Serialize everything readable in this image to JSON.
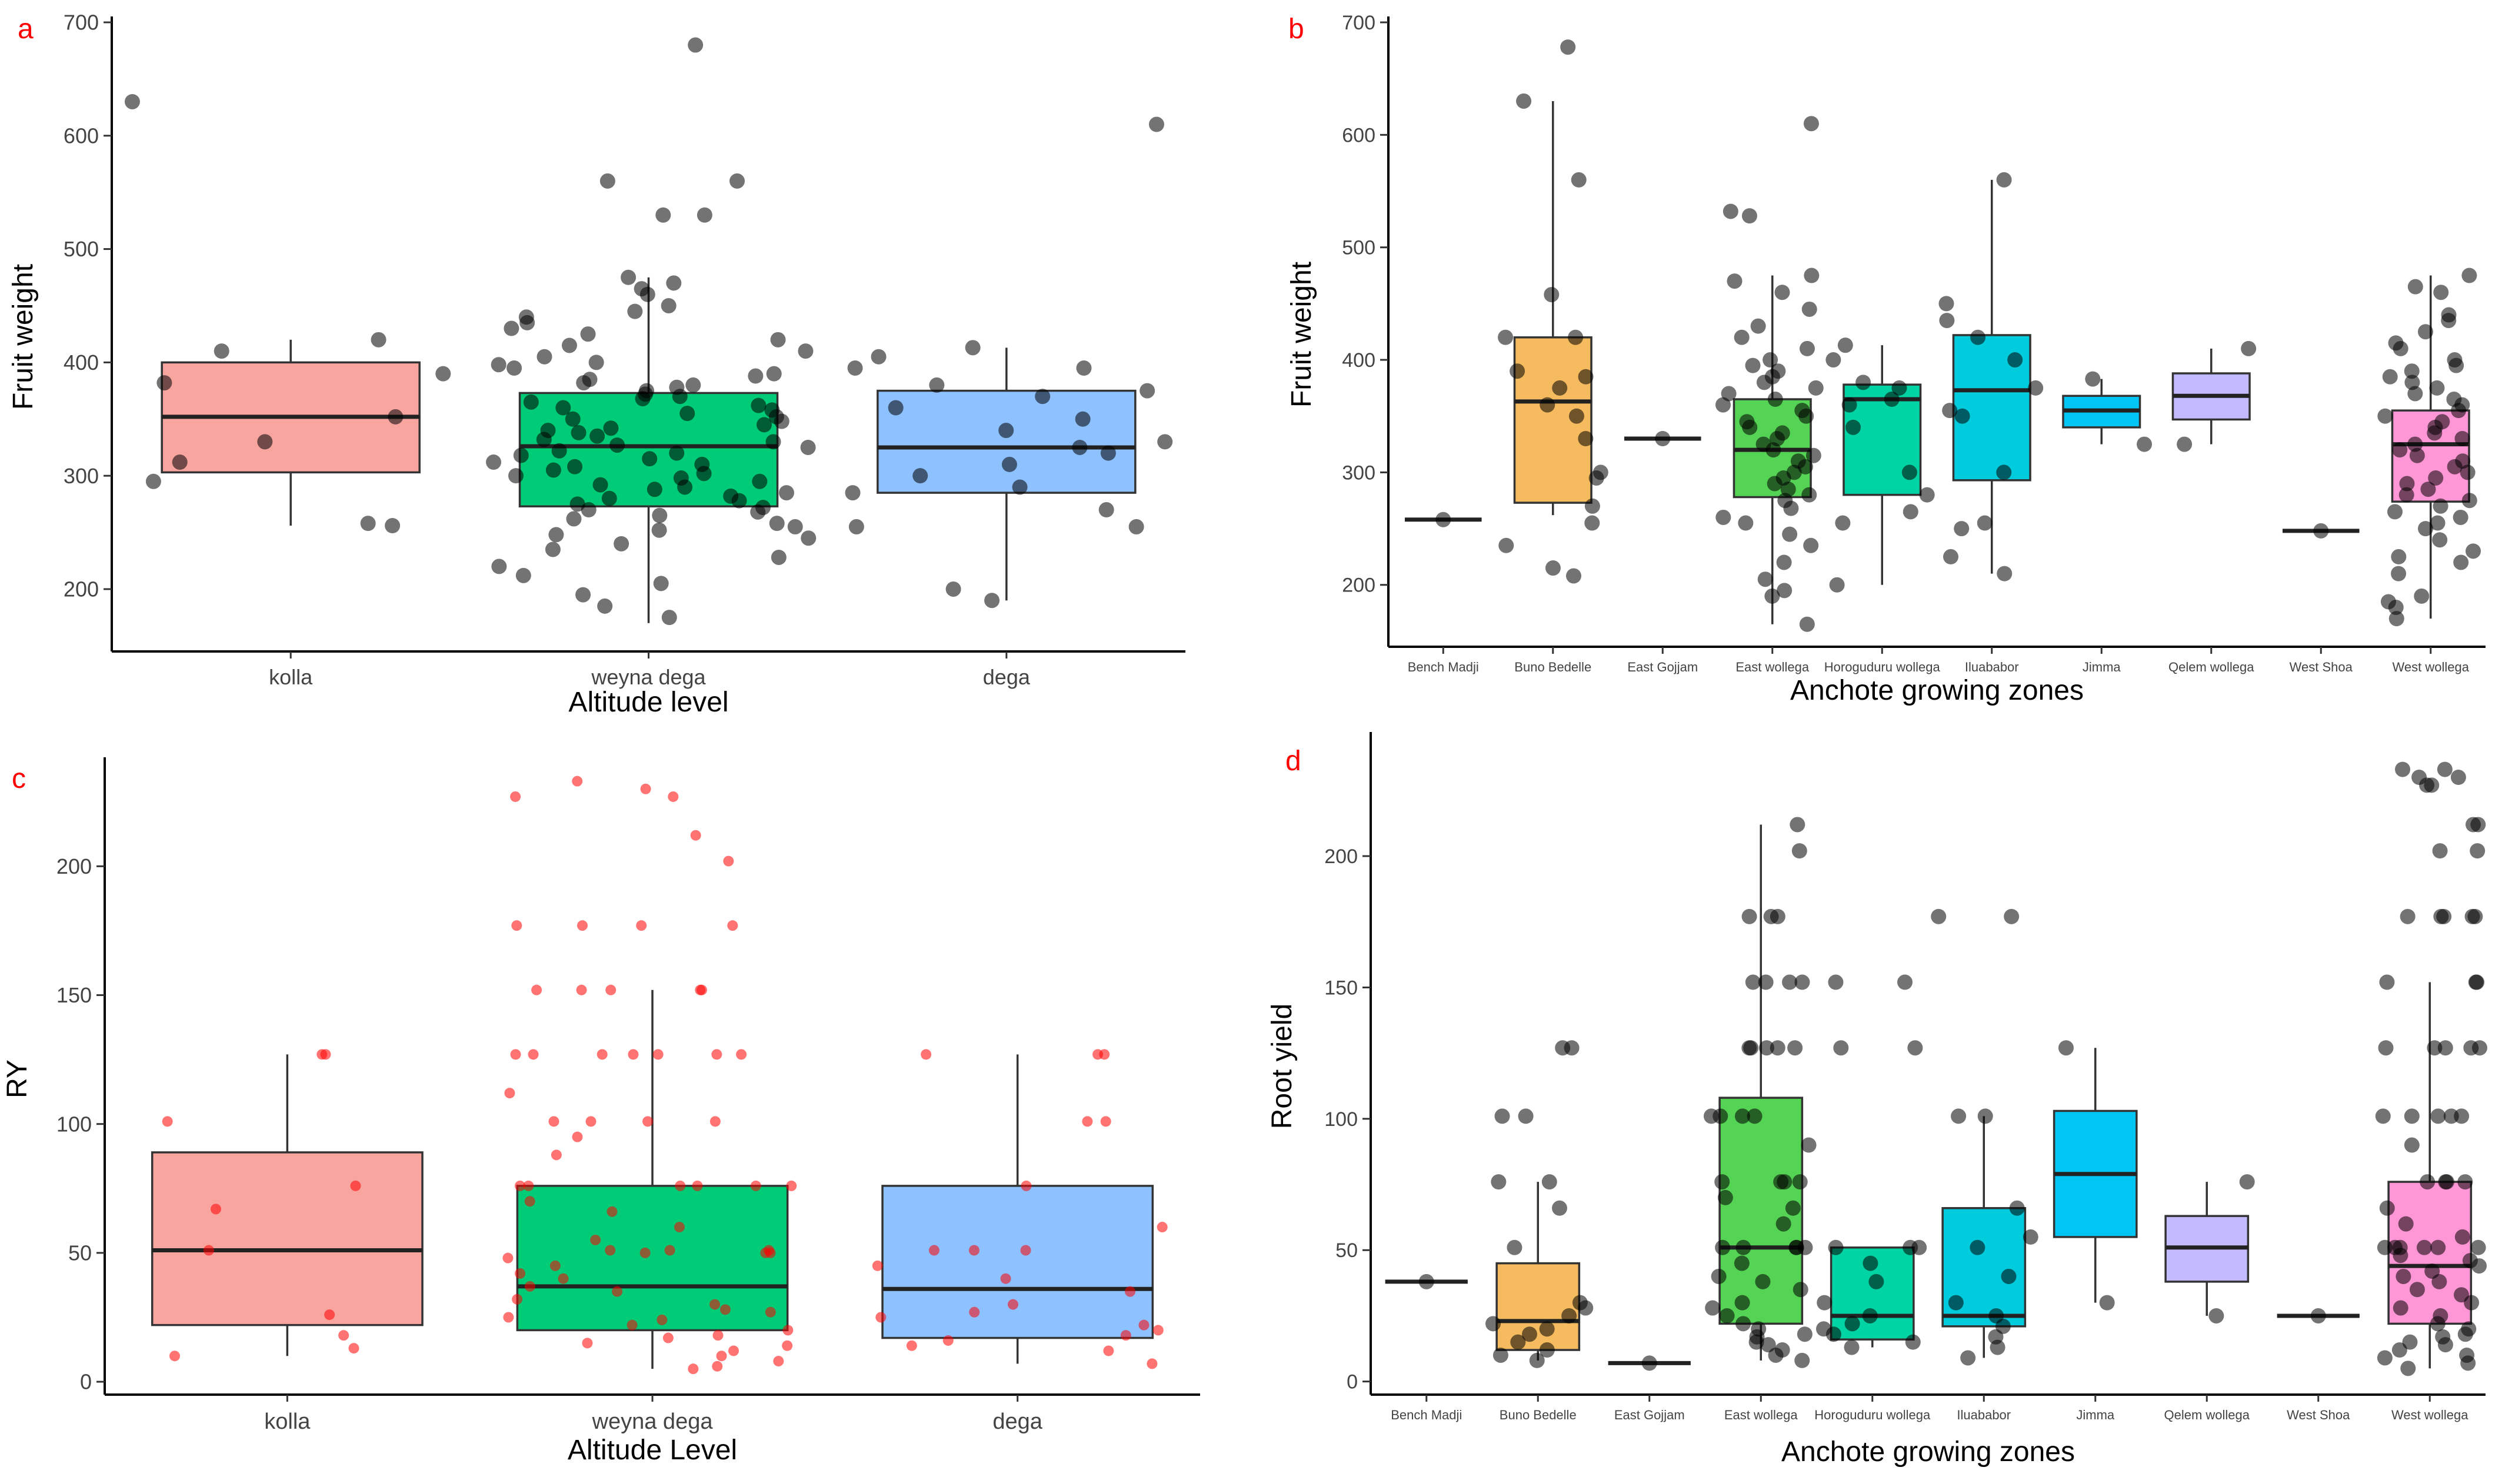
{
  "chart_data": [
    {
      "panel": "a",
      "type": "box",
      "xlabel": "Altitude level",
      "ylabel": "Fruit weight",
      "ylim": [
        145,
        700
      ],
      "yticks": [
        200,
        300,
        400,
        500,
        600,
        700
      ],
      "categories": [
        "kolla",
        "weyna dega",
        "dega"
      ],
      "colors": [
        "#f8a5a0",
        "#00cc77",
        "#8ec1ff"
      ],
      "point_color": "#000000",
      "boxes": [
        {
          "q1": 303,
          "median": 352,
          "q3": 400,
          "whisker_low": 256,
          "whisker_high": 420
        },
        {
          "q1": 273,
          "median": 326,
          "q3": 373,
          "whisker_low": 170,
          "whisker_high": 475
        },
        {
          "q1": 285,
          "median": 325,
          "q3": 375,
          "whisker_low": 190,
          "whisker_high": 413
        }
      ],
      "outliers": [
        [
          630
        ],
        [
          680,
          560,
          560,
          530,
          530
        ],
        [
          610
        ]
      ],
      "points": [
        [
          258,
          295,
          330,
          352,
          312,
          256,
          382,
          390,
          410,
          420
        ],
        [
          175,
          185,
          195,
          205,
          212,
          220,
          228,
          235,
          240,
          245,
          248,
          252,
          255,
          258,
          262,
          265,
          268,
          270,
          272,
          275,
          278,
          280,
          282,
          285,
          288,
          290,
          292,
          295,
          298,
          300,
          302,
          305,
          308,
          310,
          312,
          315,
          318,
          320,
          322,
          325,
          327,
          330,
          332,
          335,
          338,
          340,
          342,
          345,
          348,
          350,
          352,
          355,
          358,
          360,
          362,
          365,
          368,
          370,
          372,
          375,
          378,
          380,
          382,
          385,
          388,
          390,
          395,
          398,
          400,
          405,
          410,
          415,
          420,
          425,
          430,
          435,
          440,
          445,
          450,
          460,
          465,
          470,
          475
        ],
        [
          190,
          200,
          255,
          255,
          270,
          285,
          290,
          300,
          310,
          320,
          325,
          330,
          340,
          350,
          360,
          370,
          375,
          380,
          395,
          395,
          405,
          413
        ]
      ]
    },
    {
      "panel": "b",
      "type": "box",
      "xlabel": "Anchote growing zones",
      "ylabel": "Fruit weight",
      "ylim": [
        145,
        700
      ],
      "yticks": [
        200,
        300,
        400,
        500,
        600,
        700
      ],
      "categories": [
        "Bench Madji",
        "Buno Bedelle",
        "East Gojjam",
        "East wollega",
        "Horoguduru wollega",
        "Iluababor",
        "Jimma",
        "Qelem wollega",
        "West Shoa",
        "West wollega"
      ],
      "colors": [
        "#f8a5a0",
        "#f5bb5e",
        "#c9d34e",
        "#55d355",
        "#00d4a4",
        "#00ccdd",
        "#00c5f5",
        "#c2bbff",
        "#f5a0f0",
        "#ff96d6"
      ],
      "point_color": "#000000",
      "boxes": [
        {
          "q1": 258,
          "median": 258,
          "q3": 258,
          "whisker_low": 258,
          "whisker_high": 258
        },
        {
          "q1": 273,
          "median": 363,
          "q3": 420,
          "whisker_low": 262,
          "whisker_high": 630
        },
        {
          "q1": 330,
          "median": 330,
          "q3": 330,
          "whisker_low": 330,
          "whisker_high": 330
        },
        {
          "q1": 278,
          "median": 320,
          "q3": 365,
          "whisker_low": 165,
          "whisker_high": 475
        },
        {
          "q1": 280,
          "median": 365,
          "q3": 378,
          "whisker_low": 200,
          "whisker_high": 413
        },
        {
          "q1": 293,
          "median": 373,
          "q3": 422,
          "whisker_low": 210,
          "whisker_high": 560
        },
        {
          "q1": 340,
          "median": 355,
          "q3": 368,
          "whisker_low": 325,
          "whisker_high": 383
        },
        {
          "q1": 347,
          "median": 368,
          "q3": 388,
          "whisker_low": 325,
          "whisker_high": 410
        },
        {
          "q1": 248,
          "median": 248,
          "q3": 248,
          "whisker_low": 248,
          "whisker_high": 248
        },
        {
          "q1": 274,
          "median": 325,
          "q3": 355,
          "whisker_low": 170,
          "whisker_high": 475
        }
      ],
      "outliers": [
        [],
        [
          678
        ],
        [],
        [
          610,
          532,
          528
        ],
        [],
        [],
        [],
        [],
        [],
        []
      ],
      "points": [
        [
          258
        ],
        [
          208,
          215,
          235,
          255,
          270,
          295,
          300,
          330,
          350,
          360,
          375,
          385,
          390,
          420,
          420,
          458,
          560,
          630
        ],
        [
          330
        ],
        [
          165,
          190,
          195,
          205,
          220,
          235,
          245,
          255,
          260,
          268,
          275,
          280,
          285,
          290,
          295,
          300,
          305,
          310,
          315,
          320,
          325,
          330,
          335,
          340,
          345,
          350,
          355,
          360,
          365,
          370,
          375,
          380,
          385,
          390,
          395,
          400,
          410,
          420,
          430,
          445,
          460,
          470,
          475
        ],
        [
          200,
          255,
          265,
          280,
          300,
          340,
          360,
          365,
          375,
          380,
          400,
          413
        ],
        [
          210,
          225,
          250,
          255,
          300,
          350,
          355,
          375,
          400,
          420,
          435,
          450,
          560
        ],
        [
          325,
          383
        ],
        [
          325,
          410
        ],
        [
          248
        ],
        [
          170,
          180,
          185,
          190,
          210,
          220,
          225,
          230,
          240,
          250,
          255,
          260,
          265,
          270,
          275,
          280,
          285,
          290,
          295,
          300,
          305,
          310,
          315,
          320,
          325,
          330,
          335,
          340,
          345,
          350,
          355,
          360,
          365,
          370,
          375,
          380,
          385,
          390,
          395,
          400,
          410,
          415,
          425,
          435,
          440,
          460,
          465,
          475
        ]
      ]
    },
    {
      "panel": "c",
      "type": "box",
      "xlabel": "Altitude Level",
      "ylabel": "RY",
      "ylim": [
        -5,
        240
      ],
      "yticks": [
        0,
        50,
        100,
        150,
        200
      ],
      "categories": [
        "kolla",
        "weyna dega",
        "dega"
      ],
      "colors": [
        "#f8a5a0",
        "#00cc77",
        "#8ec1ff"
      ],
      "point_color": "#ff0000",
      "boxes": [
        {
          "q1": 22,
          "median": 51,
          "q3": 89,
          "whisker_low": 10,
          "whisker_high": 127
        },
        {
          "q1": 20,
          "median": 37,
          "q3": 76,
          "whisker_low": 5,
          "whisker_high": 152
        },
        {
          "q1": 17,
          "median": 36,
          "q3": 76,
          "whisker_low": 7,
          "whisker_high": 127
        }
      ],
      "outliers": [
        [],
        [
          177,
          177,
          177,
          177,
          202,
          212,
          227,
          227,
          230,
          233
        ],
        []
      ],
      "points": [
        [
          10,
          13,
          18,
          26,
          51,
          67,
          76,
          101,
          127,
          127
        ],
        [
          5,
          6,
          8,
          10,
          12,
          14,
          15,
          17,
          18,
          20,
          22,
          24,
          25,
          27,
          28,
          30,
          32,
          35,
          37,
          40,
          42,
          45,
          48,
          50,
          50,
          50,
          51,
          51,
          51,
          55,
          60,
          66,
          70,
          76,
          76,
          76,
          76,
          76,
          76,
          88,
          95,
          101,
          101,
          101,
          101,
          112,
          127,
          127,
          127,
          127,
          127,
          127,
          127,
          152,
          152,
          152,
          152,
          152
        ],
        [
          7,
          12,
          14,
          16,
          18,
          20,
          22,
          25,
          27,
          30,
          35,
          40,
          45,
          51,
          51,
          51,
          60,
          76,
          101,
          101,
          127,
          127,
          127
        ]
      ]
    },
    {
      "panel": "d",
      "type": "box",
      "xlabel": "Anchote growing zones",
      "ylabel": "Root yield",
      "ylim": [
        -5,
        245
      ],
      "yticks": [
        0,
        50,
        100,
        150,
        200
      ],
      "categories": [
        "Bench Madji",
        "Buno Bedelle",
        "East Gojjam",
        "East wollega",
        "Horoguduru wollega",
        "Iluababor",
        "Jimma",
        "Qelem wollega",
        "West Shoa",
        "West wollega"
      ],
      "colors": [
        "#f8a5a0",
        "#f5bb5e",
        "#c9d34e",
        "#55d355",
        "#00d4a4",
        "#00ccdd",
        "#00c5f5",
        "#c2bbff",
        "#f5a0f0",
        "#ff96d6"
      ],
      "point_color": "#000000",
      "boxes": [
        {
          "q1": 38,
          "median": 38,
          "q3": 38,
          "whisker_low": 38,
          "whisker_high": 38
        },
        {
          "q1": 12,
          "median": 23,
          "q3": 45,
          "whisker_low": 8,
          "whisker_high": 76
        },
        {
          "q1": 7,
          "median": 7,
          "q3": 7,
          "whisker_low": 7,
          "whisker_high": 7
        },
        {
          "q1": 22,
          "median": 51,
          "q3": 108,
          "whisker_low": 8,
          "whisker_high": 212
        },
        {
          "q1": 16,
          "median": 25,
          "q3": 51,
          "whisker_low": 13,
          "whisker_high": 51
        },
        {
          "q1": 21,
          "median": 25,
          "q3": 66,
          "whisker_low": 9,
          "whisker_high": 101
        },
        {
          "q1": 55,
          "median": 79,
          "q3": 103,
          "whisker_low": 30,
          "whisker_high": 127
        },
        {
          "q1": 38,
          "median": 51,
          "q3": 63,
          "whisker_low": 25,
          "whisker_high": 76
        },
        {
          "q1": 25,
          "median": 25,
          "q3": 25,
          "whisker_low": 25,
          "whisker_high": 25
        },
        {
          "q1": 22,
          "median": 44,
          "q3": 76,
          "whisker_low": 5,
          "whisker_high": 152
        }
      ],
      "outliers": [
        [],
        [
          101,
          127
        ],
        [],
        [],
        [
          127,
          152
        ],
        [
          177
        ],
        [],
        [],
        [],
        [
          177,
          177,
          202,
          212,
          227,
          230,
          233
        ]
      ],
      "points": [
        [
          38
        ],
        [
          8,
          10,
          12,
          15,
          18,
          20,
          22,
          25,
          28,
          30,
          51,
          66,
          76,
          76,
          101,
          127
        ],
        [
          7
        ],
        [
          8,
          10,
          12,
          14,
          15,
          17,
          18,
          20,
          22,
          25,
          28,
          30,
          35,
          38,
          40,
          45,
          51,
          51,
          51,
          51,
          51,
          60,
          66,
          70,
          76,
          76,
          76,
          76,
          90,
          101,
          101,
          101,
          101,
          127,
          127,
          127,
          127,
          127,
          152,
          152,
          152,
          152,
          177,
          177,
          177,
          202,
          212
        ],
        [
          13,
          15,
          18,
          20,
          22,
          25,
          30,
          38,
          45,
          51,
          51,
          51,
          127,
          152
        ],
        [
          9,
          13,
          17,
          21,
          25,
          30,
          40,
          51,
          55,
          66,
          101,
          101,
          177
        ],
        [
          30,
          127
        ],
        [
          25,
          76
        ],
        [
          25
        ],
        [
          5,
          7,
          9,
          10,
          12,
          14,
          15,
          17,
          18,
          20,
          22,
          25,
          28,
          30,
          33,
          35,
          38,
          40,
          42,
          44,
          46,
          48,
          51,
          51,
          51,
          51,
          51,
          51,
          55,
          60,
          66,
          76,
          76,
          76,
          76,
          90,
          101,
          101,
          101,
          101,
          101,
          127,
          127,
          127,
          127,
          127,
          152,
          152,
          152,
          177,
          177,
          177,
          202,
          212,
          227,
          230,
          233
        ]
      ]
    }
  ]
}
